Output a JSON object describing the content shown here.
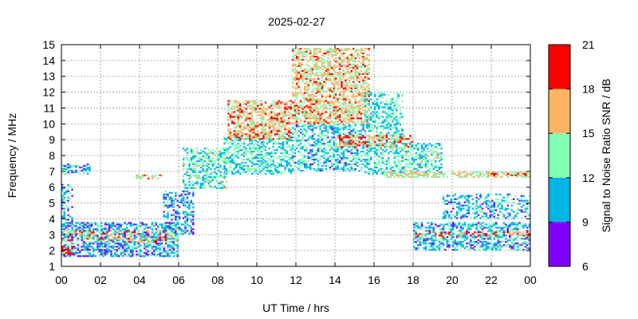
{
  "chart_data": {
    "type": "heatmap",
    "title": "2025-02-27",
    "xlabel": "UT Time / hrs",
    "ylabel": "Frequency / MHz",
    "colorbar_label": "Signal to Noise Ratio SNR / dB",
    "xlim": [
      0,
      24
    ],
    "ylim": [
      1,
      15
    ],
    "x_ticks": [
      "00",
      "02",
      "04",
      "06",
      "08",
      "10",
      "12",
      "14",
      "16",
      "18",
      "20",
      "22",
      "00"
    ],
    "y_ticks": [
      "1",
      "2",
      "3",
      "4",
      "5",
      "6",
      "7",
      "8",
      "9",
      "10",
      "11",
      "12",
      "13",
      "14",
      "15"
    ],
    "colorbar": {
      "range": [
        6,
        21
      ],
      "ticks": [
        "6",
        "9",
        "12",
        "15",
        "18",
        "21"
      ],
      "bands": [
        {
          "from": 6,
          "to": 9,
          "color": "#8000ff"
        },
        {
          "from": 9,
          "to": 12,
          "color": "#00b4e6"
        },
        {
          "from": 12,
          "to": 15,
          "color": "#80ffb4"
        },
        {
          "from": 15,
          "to": 18,
          "color": "#ffb464"
        },
        {
          "from": 18,
          "to": 21,
          "color": "#ff0000"
        }
      ]
    },
    "grid": true,
    "regions": [
      {
        "x": [
          0.0,
          6.0
        ],
        "y": [
          1.6,
          3.8
        ],
        "snr": 10.5,
        "density": 0.6
      },
      {
        "x": [
          0.0,
          6.0
        ],
        "y": [
          2.5,
          3.3
        ],
        "snr": 16.0,
        "density": 0.35
      },
      {
        "x": [
          0.0,
          0.6
        ],
        "y": [
          1.7,
          2.3
        ],
        "snr": 19.0,
        "density": 0.6
      },
      {
        "x": [
          0.0,
          0.6
        ],
        "y": [
          3.5,
          6.2
        ],
        "snr": 10.5,
        "density": 0.35
      },
      {
        "x": [
          0.0,
          1.5
        ],
        "y": [
          6.8,
          7.5
        ],
        "snr": 11.0,
        "density": 0.4
      },
      {
        "x": [
          3.8,
          5.2
        ],
        "y": [
          6.5,
          6.8
        ],
        "snr": 16.0,
        "density": 0.5
      },
      {
        "x": [
          5.2,
          6.8
        ],
        "y": [
          3.0,
          5.8
        ],
        "snr": 10.5,
        "density": 0.45
      },
      {
        "x": [
          6.2,
          8.5
        ],
        "y": [
          5.9,
          8.5
        ],
        "snr": 12.5,
        "density": 0.5
      },
      {
        "x": [
          8.3,
          11.8
        ],
        "y": [
          6.8,
          9.2
        ],
        "snr": 12.0,
        "density": 0.5
      },
      {
        "x": [
          8.5,
          11.8
        ],
        "y": [
          9.0,
          11.5
        ],
        "snr": 16.5,
        "density": 0.55
      },
      {
        "x": [
          11.8,
          15.5
        ],
        "y": [
          7.0,
          10.0
        ],
        "snr": 11.5,
        "density": 0.5
      },
      {
        "x": [
          11.8,
          15.8
        ],
        "y": [
          10.0,
          14.8
        ],
        "snr": 16.0,
        "density": 0.55
      },
      {
        "x": [
          15.5,
          17.5
        ],
        "y": [
          6.8,
          12.0
        ],
        "snr": 12.0,
        "density": 0.45
      },
      {
        "x": [
          14.0,
          18.0
        ],
        "y": [
          8.5,
          9.3
        ],
        "snr": 17.0,
        "density": 0.45
      },
      {
        "x": [
          17.5,
          19.5
        ],
        "y": [
          6.8,
          8.8
        ],
        "snr": 12.5,
        "density": 0.45
      },
      {
        "x": [
          16.5,
          24.0
        ],
        "y": [
          6.6,
          7.0
        ],
        "snr": 15.0,
        "density": 0.55
      },
      {
        "x": [
          22.0,
          24.0
        ],
        "y": [
          6.7,
          6.9
        ],
        "snr": 19.0,
        "density": 0.5
      },
      {
        "x": [
          18.0,
          24.0
        ],
        "y": [
          2.0,
          3.8
        ],
        "snr": 11.0,
        "density": 0.5
      },
      {
        "x": [
          18.0,
          24.0
        ],
        "y": [
          2.8,
          3.2
        ],
        "snr": 17.0,
        "density": 0.3
      },
      {
        "x": [
          19.5,
          24.0
        ],
        "y": [
          4.0,
          5.6
        ],
        "snr": 11.0,
        "density": 0.4
      }
    ]
  }
}
